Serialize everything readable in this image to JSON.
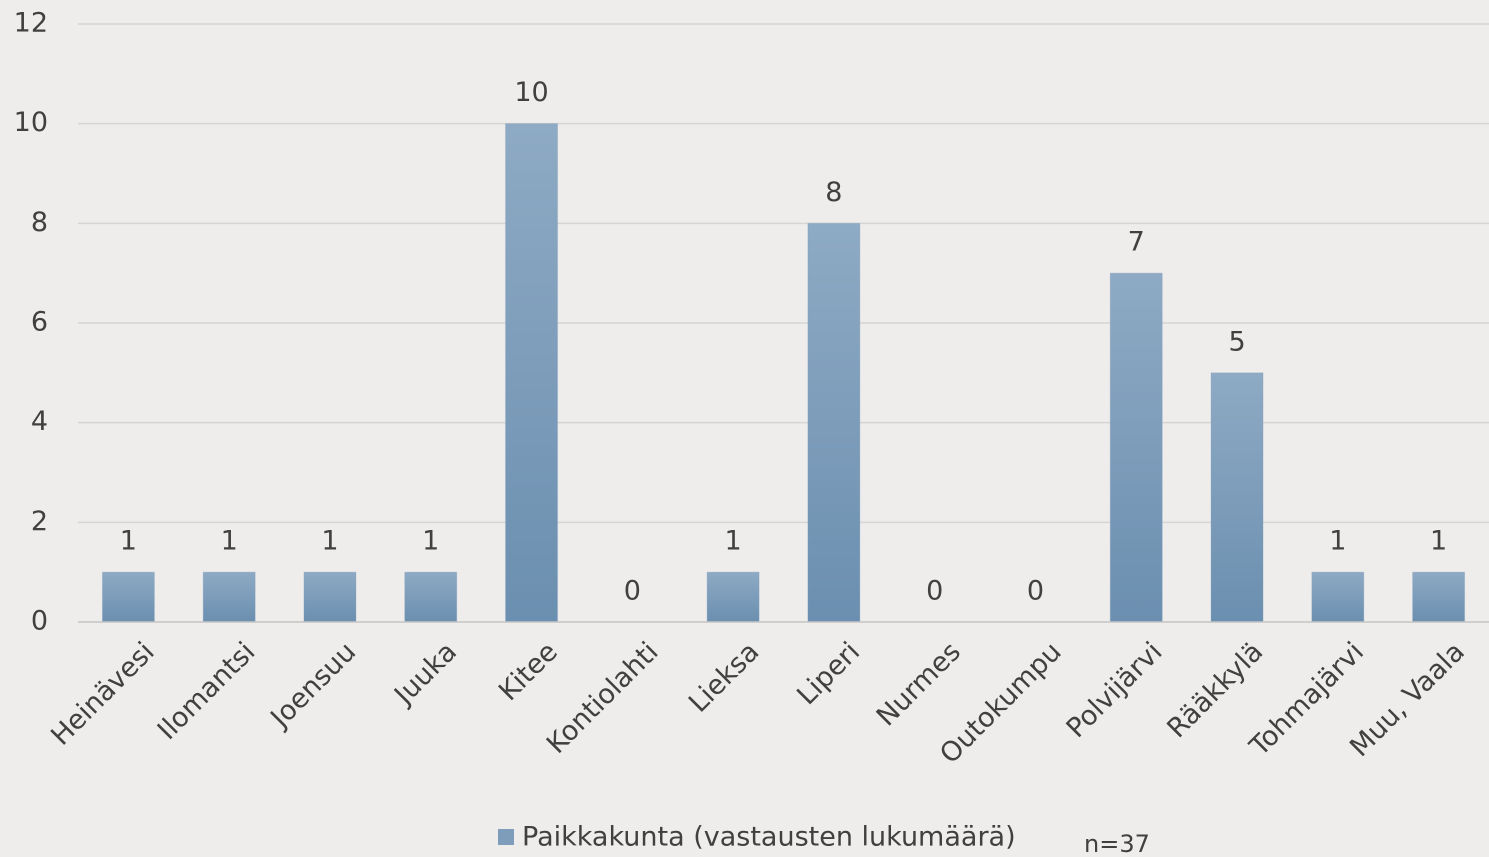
{
  "chart_data": {
    "type": "bar",
    "categories": [
      "Heinävesi",
      "Ilomantsi",
      "Joensuu",
      "Juuka",
      "Kitee",
      "Kontiolahti",
      "Lieksa",
      "Liperi",
      "Nurmes",
      "Outokumpu",
      "Polvijärvi",
      "Rääkkylä",
      "Tohmajärvi",
      "Muu, Vaala"
    ],
    "series": [
      {
        "name": "Paikkakunta (vastausten lukumäärä)",
        "color": "#7e9dbb",
        "values": [
          1,
          1,
          1,
          1,
          10,
          0,
          1,
          8,
          0,
          0,
          7,
          5,
          1,
          1
        ]
      }
    ],
    "annotation": "n=37",
    "ylim": [
      0,
      12
    ],
    "yticks": [
      0,
      2,
      4,
      6,
      8,
      10,
      12
    ],
    "grid": true,
    "legend": "bottom"
  }
}
